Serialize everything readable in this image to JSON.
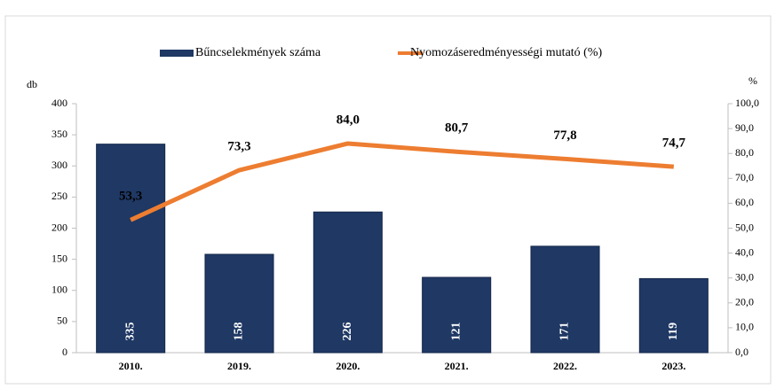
{
  "chart_data": {
    "type": "bar",
    "categories": [
      "2010.",
      "2019.",
      "2020.",
      "2021.",
      "2022.",
      "2023."
    ],
    "series": [
      {
        "name": "Bűncselekmények száma",
        "color": "#1f3864",
        "type": "bar",
        "values": [
          335,
          158,
          226,
          121,
          171,
          119
        ]
      },
      {
        "name": "Nyomozáseredményességi mutató (%)",
        "color": "#ed7d31",
        "type": "line",
        "axis": "y2",
        "values": [
          53.3,
          73.3,
          84.0,
          80.7,
          77.8,
          74.7
        ],
        "value_labels": [
          "53,3",
          "73,3",
          "84,0",
          "80,7",
          "77,8",
          "74,7"
        ]
      }
    ],
    "y_label": "db",
    "y2_label": "%",
    "ylim": [
      0,
      400
    ],
    "yticks": [
      0,
      50,
      100,
      150,
      200,
      250,
      300,
      350,
      400
    ],
    "y2lim": [
      0,
      100
    ],
    "y2ticks": [
      {
        "value": 0,
        "label": "0,0"
      },
      {
        "value": 10,
        "label": "10,0"
      },
      {
        "value": 20,
        "label": "20,0"
      },
      {
        "value": 30,
        "label": "30,0"
      },
      {
        "value": 40,
        "label": "40,0"
      },
      {
        "value": 50,
        "label": "50,0"
      },
      {
        "value": 60,
        "label": "60,0"
      },
      {
        "value": 70,
        "label": "70,0"
      },
      {
        "value": 80,
        "label": "80,0"
      },
      {
        "value": 90,
        "label": "90,0"
      },
      {
        "value": 100,
        "label": "100,0"
      }
    ],
    "legend": "top"
  }
}
